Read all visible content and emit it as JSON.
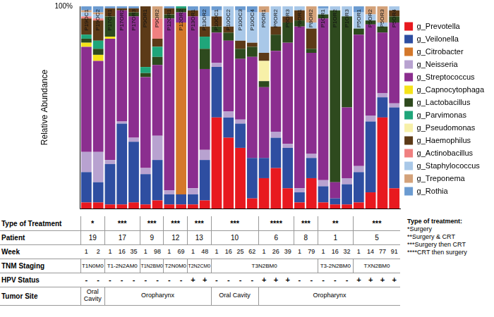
{
  "chart_data": {
    "type": "bar",
    "stacked": true,
    "y_label": "Relative Abundance",
    "categories": [
      "P19OC1",
      "P19OC2",
      "P17OR1",
      "P17OR2",
      "P17OR3",
      "P9OR1",
      "P9OR2",
      "P12OR1",
      "P12OR2",
      "P13OR1",
      "P13OR2",
      "P10OC1",
      "P10OC2",
      "P10OC3",
      "P10OC4",
      "P6OR1",
      "P6OR2",
      "P6OR3",
      "P8OR1",
      "P8OR2",
      "P1OR1",
      "P1OR2",
      "P1OR3",
      "P5OR1",
      "P5OR2",
      "P5OR3",
      "P5OR4"
    ],
    "series": [
      {
        "name": "g_Prevotella",
        "color": "#e8191f",
        "values": [
          3,
          3,
          2,
          2,
          3,
          2,
          4,
          2,
          2,
          2,
          4,
          45,
          35,
          30,
          5,
          15,
          20,
          10,
          3,
          15,
          3,
          2,
          2,
          3,
          8,
          45,
          10
        ]
      },
      {
        "name": "g_Veilonella",
        "color": "#2e4ea1",
        "values": [
          15,
          10,
          20,
          40,
          30,
          15,
          20,
          5,
          5,
          5,
          20,
          25,
          10,
          12,
          20,
          10,
          15,
          20,
          5,
          10,
          8,
          3,
          10,
          15,
          35,
          10,
          40
        ]
      },
      {
        "name": "g_Citrobacter",
        "color": "#d4782b",
        "values": [
          0,
          0,
          0,
          0,
          0,
          0,
          0,
          0,
          85,
          0,
          0,
          0,
          0,
          0,
          0,
          0,
          0,
          0,
          0,
          0,
          0,
          0,
          0,
          0,
          0,
          0,
          0
        ]
      },
      {
        "name": "g_Neisseria",
        "color": "#b8a2d0",
        "values": [
          10,
          15,
          2,
          1,
          2,
          3,
          12,
          2,
          0,
          3,
          5,
          2,
          3,
          2,
          0,
          0,
          3,
          2,
          2,
          2,
          3,
          0,
          3,
          3,
          3,
          2,
          2
        ]
      },
      {
        "name": "g_Streptococcus",
        "color": "#8b2e8f",
        "values": [
          52,
          45,
          60,
          55,
          60,
          45,
          35,
          85,
          5,
          85,
          40,
          15,
          35,
          30,
          50,
          35,
          40,
          50,
          80,
          50,
          80,
          8,
          35,
          65,
          45,
          30,
          40
        ]
      },
      {
        "name": "g_Capnocytophaga",
        "color": "#f5e31a",
        "values": [
          2,
          3,
          1,
          0,
          0,
          0,
          0,
          0,
          0,
          0,
          0,
          0,
          0,
          0,
          0,
          0,
          0,
          0,
          0,
          0,
          0,
          0,
          0,
          0,
          0,
          0,
          0
        ]
      },
      {
        "name": "g_Lactobacillus",
        "color": "#2e4a1e",
        "values": [
          2,
          3,
          10,
          0,
          2,
          2,
          4,
          2,
          2,
          0,
          10,
          3,
          4,
          5,
          5,
          3,
          8,
          10,
          3,
          2,
          2,
          85,
          45,
          3,
          2,
          3,
          3
        ]
      },
      {
        "name": "g_Parvimonas",
        "color": "#1fa67a",
        "values": [
          2,
          4,
          0,
          0,
          0,
          3,
          5,
          0,
          1,
          0,
          6,
          0,
          0,
          0,
          0,
          0,
          0,
          0,
          0,
          0,
          0,
          0,
          0,
          0,
          0,
          0,
          0
        ]
      },
      {
        "name": "g_Pseudomonas",
        "color": "#f7f0a8",
        "values": [
          0,
          0,
          0,
          0,
          0,
          0,
          0,
          0,
          0,
          0,
          0,
          0,
          0,
          0,
          0,
          10,
          0,
          0,
          0,
          0,
          0,
          0,
          0,
          0,
          0,
          0,
          0
        ]
      },
      {
        "name": "g_Haemophilus",
        "color": "#5c3a17",
        "values": [
          8,
          10,
          4,
          1,
          2,
          30,
          4,
          3,
          0,
          3,
          5,
          5,
          3,
          4,
          2,
          4,
          4,
          3,
          5,
          10,
          0,
          0,
          0,
          0,
          0,
          0,
          3
        ]
      },
      {
        "name": "g_Actinobacillus",
        "color": "#f08080",
        "values": [
          1,
          1,
          0,
          0,
          0,
          0,
          10,
          0,
          0,
          0,
          0,
          0,
          0,
          0,
          0,
          0,
          0,
          0,
          0,
          0,
          0,
          0,
          0,
          0,
          0,
          0,
          0
        ]
      },
      {
        "name": "g_Staphylococcus",
        "color": "#a9c8e8",
        "values": [
          2,
          2,
          0,
          0,
          0,
          0,
          0,
          0,
          0,
          0,
          5,
          3,
          10,
          15,
          15,
          20,
          10,
          5,
          2,
          3,
          3,
          2,
          5,
          8,
          3,
          2,
          2
        ]
      },
      {
        "name": "g_Treponema",
        "color": "#d4a27a",
        "values": [
          1,
          1,
          0,
          0,
          0,
          0,
          6,
          0,
          0,
          0,
          0,
          0,
          0,
          0,
          0,
          3,
          0,
          0,
          0,
          8,
          0,
          0,
          0,
          0,
          4,
          8,
          0
        ]
      },
      {
        "name": "g_Rothia",
        "color": "#6b9bd1",
        "values": [
          2,
          3,
          1,
          1,
          1,
          0,
          0,
          1,
          0,
          2,
          5,
          2,
          0,
          2,
          3,
          0,
          0,
          0,
          0,
          0,
          1,
          0,
          0,
          3,
          0,
          0,
          0
        ]
      }
    ],
    "ylim": [
      0,
      100
    ],
    "yticks": [
      {
        "value": 100,
        "label": "100%"
      }
    ],
    "grid": false,
    "legend": "right",
    "tick_labels": "y"
  },
  "table": {
    "row_labels": {
      "treatment": "Type of Treatment",
      "patient": "Patient",
      "week": "Week",
      "tnm": "TNM Staging",
      "hpv": "HPV Status",
      "site": "Tumor Site"
    },
    "patients": [
      {
        "patient": 19,
        "treatment": "*",
        "weeks": [
          1,
          2
        ],
        "hpv": [
          "-",
          "-"
        ],
        "tnm": "T1N0M0",
        "site": "Oral Cavity"
      },
      {
        "patient": 17,
        "treatment": "***",
        "weeks": [
          1,
          16,
          35
        ],
        "hpv": [
          "-",
          "-",
          "-"
        ],
        "tnm": "T1-2N2AM0",
        "site": "Oropharynx"
      },
      {
        "patient": 9,
        "treatment": "***",
        "weeks": [
          1,
          98
        ],
        "hpv": [
          "-",
          "-"
        ],
        "tnm": "T1N2BM0",
        "site": "Oropharynx"
      },
      {
        "patient": 12,
        "treatment": "***",
        "weeks": [
          1,
          69
        ],
        "hpv": [
          "-",
          "-"
        ],
        "tnm": "T2N0M0",
        "site": "Oropharynx"
      },
      {
        "patient": 13,
        "treatment": "***",
        "weeks": [
          1,
          48
        ],
        "hpv": [
          "+",
          "+"
        ],
        "tnm": "T2N2CM0",
        "site": "Oropharynx"
      },
      {
        "patient": 10,
        "treatment": "***",
        "weeks": [
          1,
          16,
          25,
          62
        ],
        "hpv": [
          "-",
          "-",
          "-",
          "-"
        ],
        "tnm": "T3N2BM0",
        "site": "Oral Cavity"
      },
      {
        "patient": 6,
        "treatment": "****",
        "weeks": [
          1,
          26,
          39
        ],
        "hpv": [
          "+",
          "+",
          "+"
        ],
        "tnm": "T3N2BM0",
        "site": "Oropharynx"
      },
      {
        "patient": 8,
        "treatment": "***",
        "weeks": [
          1,
          79
        ],
        "hpv": [
          "-",
          "-"
        ],
        "tnm": "T3N2BM0",
        "site": "Oropharynx"
      },
      {
        "patient": 1,
        "treatment": "**",
        "weeks": [
          1,
          16,
          32
        ],
        "hpv": [
          "-",
          "-",
          "-"
        ],
        "tnm": "T3-2N2BM0",
        "site": "Oropharynx"
      },
      {
        "patient": 5,
        "treatment": "***",
        "weeks": [
          1,
          14,
          77,
          91
        ],
        "hpv": [
          "+",
          "+",
          "+",
          "+"
        ],
        "tnm": "TXN2BM0",
        "site": "Oropharynx"
      }
    ]
  },
  "footnote": {
    "title": "Type of treatment:",
    "items": [
      "*Surgery",
      "**Surgery & CRT",
      "***Surgery then CRT",
      "****CRT then surgery"
    ]
  }
}
